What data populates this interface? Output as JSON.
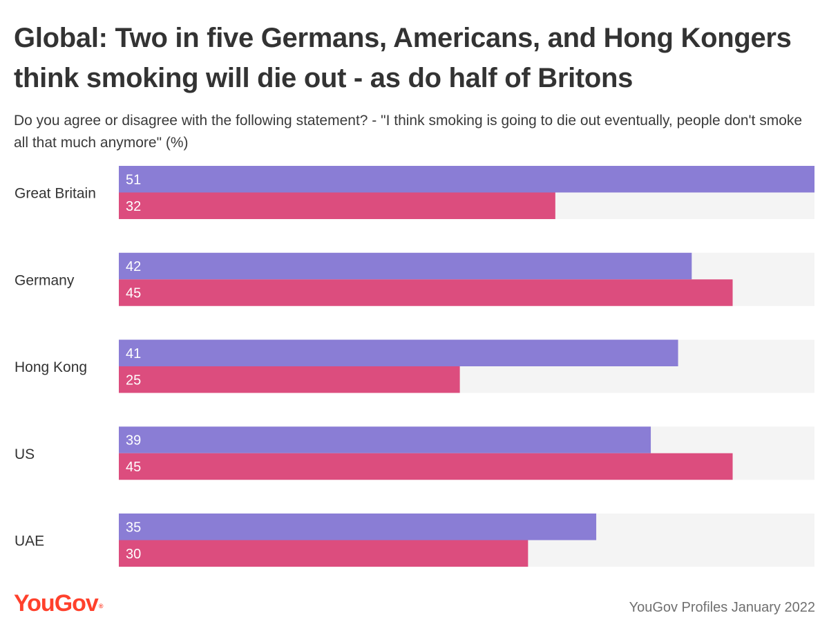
{
  "title": "Global: Two in five Germans, Americans, and Hong Kongers think smoking will die out - as do half of Britons",
  "subtitle": "Do you agree or disagree with the following statement? - \"I think smoking is going to die out eventually, people don't smoke all that much anymore\" (%)",
  "logo": {
    "text": "YouGov",
    "mark": "®"
  },
  "source": "YouGov Profiles January 2022",
  "colors": {
    "series_1": "#8a7dd5",
    "series_2": "#dc4d7e",
    "track": "#f4f4f4",
    "brand": "#ff412c"
  },
  "chart_data": {
    "type": "bar",
    "orientation": "horizontal",
    "categories": [
      "Great Britain",
      "Germany",
      "Hong Kong",
      "US",
      "UAE"
    ],
    "series": [
      {
        "values": [
          51,
          42,
          41,
          39,
          35
        ]
      },
      {
        "values": [
          32,
          45,
          25,
          45,
          30
        ]
      }
    ],
    "xlim": [
      0,
      51
    ],
    "grid": false,
    "value_labels": true,
    "legend": "none"
  }
}
